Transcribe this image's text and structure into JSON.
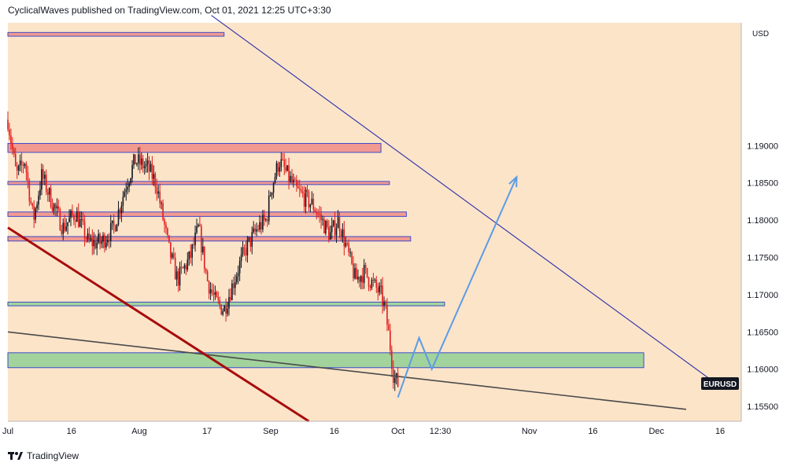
{
  "header": {
    "text": "CyclicalWaves published on TradingView.com, Oct 01, 2021 12:25 UTC+3:30"
  },
  "footer": {
    "brand": "TradingView"
  },
  "colors": {
    "plot_bg": "#fce4c9",
    "candle_up": "#131722",
    "candle_down": "#e01e1e",
    "red_zone_fill": "#f29a90",
    "green_zone_fill": "#a3d39c",
    "zone_border": "#3b4bcc",
    "channel_line": "#2b2fa8",
    "support_line": "#4a4a4a",
    "trend_line": "#a80c0c",
    "projection": "#5a9ce6",
    "label_bg": "#131722"
  },
  "chart_data": {
    "type": "candlestick",
    "symbol": "EURUSD",
    "currency": "USD",
    "title": "",
    "xlabel": "",
    "ylabel": "",
    "ylim": [
      1.153,
      1.2065
    ],
    "xlim": [
      "2021-07-01",
      "2021-12-21"
    ],
    "x_tick_labels": [
      {
        "date": "2021-07-01",
        "label": "Jul"
      },
      {
        "date": "2021-07-16",
        "label": "16"
      },
      {
        "date": "2021-08-01",
        "label": "Aug"
      },
      {
        "date": "2021-08-17",
        "label": "17"
      },
      {
        "date": "2021-09-01",
        "label": "Sep"
      },
      {
        "date": "2021-09-16",
        "label": "16"
      },
      {
        "date": "2021-10-01",
        "label": "Oct"
      },
      {
        "date": "2021-10-11",
        "label": "12:30"
      },
      {
        "date": "2021-11-01",
        "label": "Nov"
      },
      {
        "date": "2021-11-16",
        "label": "16"
      },
      {
        "date": "2021-12-01",
        "label": "Dec"
      },
      {
        "date": "2021-12-16",
        "label": "16"
      }
    ],
    "y_tick_labels": [
      "1.15500",
      "1.16000",
      "1.16500",
      "1.17000",
      "1.17500",
      "1.18000",
      "1.18500",
      "1.19000"
    ],
    "price_path": [
      [
        "2021-07-01",
        1.1935
      ],
      [
        "2021-07-03",
        1.186
      ],
      [
        "2021-07-05",
        1.188
      ],
      [
        "2021-07-07",
        1.18
      ],
      [
        "2021-07-09",
        1.186
      ],
      [
        "2021-07-11",
        1.183
      ],
      [
        "2021-07-14",
        1.179
      ],
      [
        "2021-07-17",
        1.181
      ],
      [
        "2021-07-20",
        1.177
      ],
      [
        "2021-07-23",
        1.177
      ],
      [
        "2021-07-26",
        1.179
      ],
      [
        "2021-07-29",
        1.185
      ],
      [
        "2021-07-31",
        1.188
      ],
      [
        "2021-08-03",
        1.187
      ],
      [
        "2021-08-05",
        1.185
      ],
      [
        "2021-08-08",
        1.176
      ],
      [
        "2021-08-10",
        1.172
      ],
      [
        "2021-08-13",
        1.175
      ],
      [
        "2021-08-15",
        1.179
      ],
      [
        "2021-08-17",
        1.172
      ],
      [
        "2021-08-19",
        1.169
      ],
      [
        "2021-08-21",
        1.168
      ],
      [
        "2021-08-24",
        1.173
      ],
      [
        "2021-08-26",
        1.176
      ],
      [
        "2021-08-29",
        1.179
      ],
      [
        "2021-08-31",
        1.18
      ],
      [
        "2021-09-01",
        1.184
      ],
      [
        "2021-09-03",
        1.188
      ],
      [
        "2021-09-05",
        1.186
      ],
      [
        "2021-09-07",
        1.184
      ],
      [
        "2021-09-09",
        1.183
      ],
      [
        "2021-09-11",
        1.182
      ],
      [
        "2021-09-13",
        1.18
      ],
      [
        "2021-09-15",
        1.178
      ],
      [
        "2021-09-17",
        1.18
      ],
      [
        "2021-09-19",
        1.176
      ],
      [
        "2021-09-21",
        1.172
      ],
      [
        "2021-09-23",
        1.173
      ],
      [
        "2021-09-25",
        1.1715
      ],
      [
        "2021-09-27",
        1.17
      ],
      [
        "2021-09-28",
        1.168
      ],
      [
        "2021-09-29",
        1.164
      ],
      [
        "2021-09-30",
        1.159
      ],
      [
        "2021-10-01",
        1.158
      ]
    ],
    "zones": [
      {
        "color": "red",
        "from": 1.2047,
        "to": 1.2052,
        "start": "2021-07-01",
        "end": "2021-08-21"
      },
      {
        "color": "red",
        "from": 1.1891,
        "to": 1.1903,
        "start": "2021-07-01",
        "end": "2021-09-27"
      },
      {
        "color": "red",
        "from": 1.1848,
        "to": 1.1852,
        "start": "2021-07-01",
        "end": "2021-09-29"
      },
      {
        "color": "red",
        "from": 1.1805,
        "to": 1.1811,
        "start": "2021-07-01",
        "end": "2021-10-03"
      },
      {
        "color": "red",
        "from": 1.1772,
        "to": 1.1778,
        "start": "2021-07-01",
        "end": "2021-10-04"
      },
      {
        "color": "green",
        "from": 1.1685,
        "to": 1.169,
        "start": "2021-07-01",
        "end": "2021-10-12"
      },
      {
        "color": "green",
        "from": 1.1602,
        "to": 1.1622,
        "start": "2021-07-01",
        "end": "2021-11-28"
      }
    ],
    "lines": [
      {
        "name": "descending-channel",
        "from": [
          "2021-08-18",
          1.2075
        ],
        "to": [
          "2021-12-14",
          1.1585
        ]
      },
      {
        "name": "support-trendline",
        "from": [
          "2021-07-01",
          1.165
        ],
        "to": [
          "2021-12-08",
          1.1546
        ]
      },
      {
        "name": "dark-red-trendline",
        "from": [
          "2021-07-01",
          1.179
        ],
        "to": [
          "2021-09-10",
          1.153
        ]
      }
    ],
    "projection": [
      [
        "2021-10-01",
        1.1562
      ],
      [
        "2021-10-06",
        1.1642
      ],
      [
        "2021-10-09",
        1.16
      ],
      [
        "2021-10-29",
        1.1858
      ]
    ],
    "last_label": "EURUSD"
  }
}
